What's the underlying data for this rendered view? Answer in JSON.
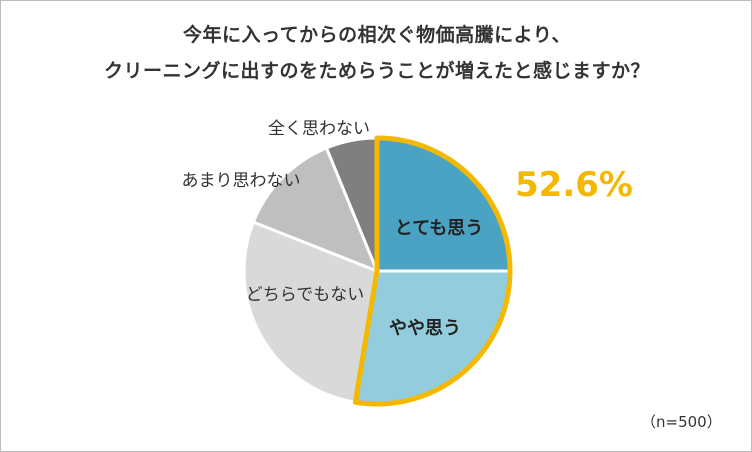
{
  "chart_data": {
    "type": "pie",
    "title": [
      "今年に入ってからの相次ぐ物価高騰により、",
      "クリーニングに出すのをためらうことが増えたと感じますか？"
    ],
    "slices": [
      {
        "label": "とても思う",
        "value": 25.0,
        "color": "#4ba3c3"
      },
      {
        "label": "やや思う",
        "value": 27.6,
        "color": "#93cddd"
      },
      {
        "label": "どちらでもない",
        "value": 28.4,
        "color": "#d9d9d9"
      },
      {
        "label": "あまり思わない",
        "value": 12.8,
        "color": "#bfbfbf"
      },
      {
        "label": "全く思わない",
        "value": 6.2,
        "color": "#7f7f7f"
      }
    ],
    "highlight": {
      "text": "52.6%",
      "color": "#f5b800"
    },
    "sample_note": "（n=500）"
  }
}
